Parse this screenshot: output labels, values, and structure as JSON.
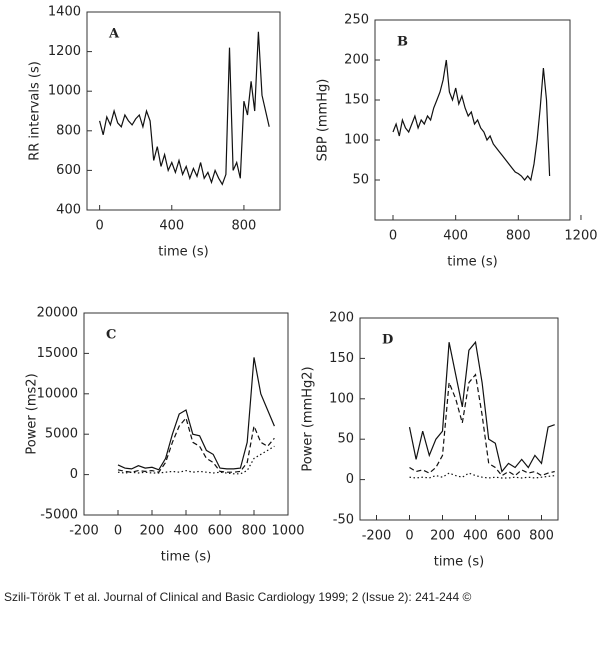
{
  "chart_data": [
    {
      "type": "line",
      "annotation": "A",
      "ylabel": "RR intervals (s)",
      "xlabel": "time (s)",
      "xlim": [
        -70,
        1000
      ],
      "ylim": [
        400,
        1400
      ],
      "xticks": [
        0,
        400,
        800
      ],
      "yticks": [
        400,
        600,
        800,
        1000,
        1200,
        1400
      ],
      "x": [
        0,
        20,
        40,
        60,
        80,
        100,
        120,
        140,
        160,
        180,
        200,
        220,
        240,
        260,
        280,
        300,
        320,
        340,
        360,
        380,
        400,
        420,
        440,
        460,
        480,
        500,
        520,
        540,
        560,
        580,
        600,
        620,
        640,
        660,
        680,
        700,
        720,
        740,
        760,
        780,
        800,
        820,
        840,
        860,
        880,
        900,
        920,
        940
      ],
      "series": [
        {
          "color": "#111",
          "dash": "solid",
          "values": [
            850,
            780,
            870,
            830,
            900,
            840,
            820,
            880,
            850,
            830,
            860,
            880,
            820,
            900,
            850,
            650,
            720,
            620,
            680,
            600,
            640,
            590,
            650,
            580,
            620,
            560,
            610,
            570,
            640,
            560,
            590,
            540,
            600,
            560,
            530,
            580,
            1220,
            600,
            640,
            560,
            950,
            880,
            1050,
            900,
            1300,
            980,
            900,
            820
          ]
        }
      ]
    },
    {
      "type": "line",
      "annotation": "B",
      "ylabel": "SBP (mmHg)",
      "xlabel": "time (s)",
      "xlim": [
        -115,
        1130
      ],
      "ylim": [
        0,
        250
      ],
      "xticks": [
        0,
        400,
        800,
        1200
      ],
      "yticks": [
        50,
        100,
        150,
        200,
        250
      ],
      "x": [
        0,
        20,
        40,
        60,
        80,
        100,
        120,
        140,
        160,
        180,
        200,
        220,
        240,
        260,
        280,
        300,
        320,
        340,
        360,
        380,
        400,
        420,
        440,
        460,
        480,
        500,
        520,
        540,
        560,
        580,
        600,
        620,
        640,
        660,
        680,
        700,
        720,
        740,
        760,
        780,
        800,
        820,
        840,
        860,
        880,
        900,
        920,
        940,
        960,
        980,
        1000
      ],
      "series": [
        {
          "color": "#111",
          "dash": "solid",
          "values": [
            110,
            120,
            105,
            125,
            115,
            110,
            120,
            130,
            115,
            125,
            120,
            130,
            125,
            140,
            150,
            160,
            175,
            200,
            160,
            150,
            165,
            145,
            155,
            140,
            130,
            135,
            120,
            125,
            115,
            110,
            100,
            105,
            95,
            90,
            85,
            80,
            75,
            70,
            65,
            60,
            58,
            55,
            50,
            55,
            50,
            70,
            100,
            140,
            190,
            150,
            55
          ]
        }
      ]
    },
    {
      "type": "line",
      "annotation": "C",
      "ylabel": "Power (ms2)",
      "xlabel": "time (s)",
      "xlim": [
        -200,
        1000
      ],
      "ylim": [
        -5000,
        20000
      ],
      "xticks": [
        -200,
        0,
        200,
        400,
        600,
        800,
        1000
      ],
      "yticks": [
        -5000,
        0,
        5000,
        10000,
        15000,
        20000
      ],
      "x": [
        0,
        40,
        80,
        120,
        160,
        200,
        240,
        280,
        320,
        360,
        400,
        440,
        480,
        520,
        560,
        600,
        640,
        680,
        720,
        760,
        800,
        840,
        880,
        920
      ],
      "series": [
        {
          "color": "#111",
          "dash": "solid",
          "values": [
            1200,
            800,
            700,
            1100,
            800,
            900,
            600,
            2000,
            5000,
            7500,
            8000,
            5000,
            4800,
            3000,
            2500,
            800,
            700,
            700,
            800,
            4000,
            14500,
            10000,
            8000,
            6000
          ]
        },
        {
          "color": "#111",
          "dash": "dashed",
          "values": [
            600,
            400,
            300,
            500,
            400,
            500,
            300,
            1500,
            4000,
            6000,
            7000,
            4000,
            3500,
            2000,
            1500,
            400,
            300,
            300,
            400,
            1500,
            6000,
            4000,
            3500,
            4500
          ]
        },
        {
          "color": "#111",
          "dash": "dotted",
          "values": [
            300,
            200,
            300,
            200,
            300,
            200,
            200,
            300,
            400,
            300,
            500,
            300,
            400,
            300,
            200,
            300,
            200,
            100,
            100,
            500,
            2000,
            2500,
            3000,
            3500
          ]
        }
      ]
    },
    {
      "type": "line",
      "annotation": "D",
      "ylabel": "Power (mmHg2)",
      "xlabel": "time (s)",
      "xlim": [
        -300,
        900
      ],
      "ylim": [
        -50,
        200
      ],
      "xticks": [
        -200,
        0,
        200,
        400,
        600,
        800
      ],
      "yticks": [
        -50,
        0,
        50,
        100,
        150,
        200
      ],
      "x": [
        0,
        40,
        80,
        120,
        160,
        200,
        240,
        280,
        320,
        360,
        400,
        440,
        480,
        520,
        560,
        600,
        640,
        680,
        720,
        760,
        800,
        840,
        880
      ],
      "series": [
        {
          "color": "#111",
          "dash": "solid",
          "values": [
            65,
            25,
            60,
            30,
            50,
            60,
            170,
            130,
            90,
            160,
            170,
            120,
            50,
            45,
            10,
            20,
            15,
            25,
            15,
            30,
            20,
            65,
            68
          ]
        },
        {
          "color": "#111",
          "dash": "dashed",
          "values": [
            15,
            10,
            12,
            8,
            15,
            30,
            120,
            100,
            70,
            120,
            130,
            80,
            20,
            15,
            5,
            10,
            5,
            12,
            8,
            10,
            5,
            8,
            10
          ]
        },
        {
          "color": "#111",
          "dash": "dotted",
          "values": [
            3,
            2,
            3,
            2,
            5,
            3,
            8,
            5,
            3,
            8,
            5,
            3,
            2,
            3,
            2,
            2,
            3,
            2,
            3,
            2,
            3,
            4,
            5
          ]
        }
      ]
    }
  ],
  "caption": "Szili-Török T et al. Journal of Clinical and Basic Cardiology 1999; 2 (Issue 2): 241-244 ©"
}
